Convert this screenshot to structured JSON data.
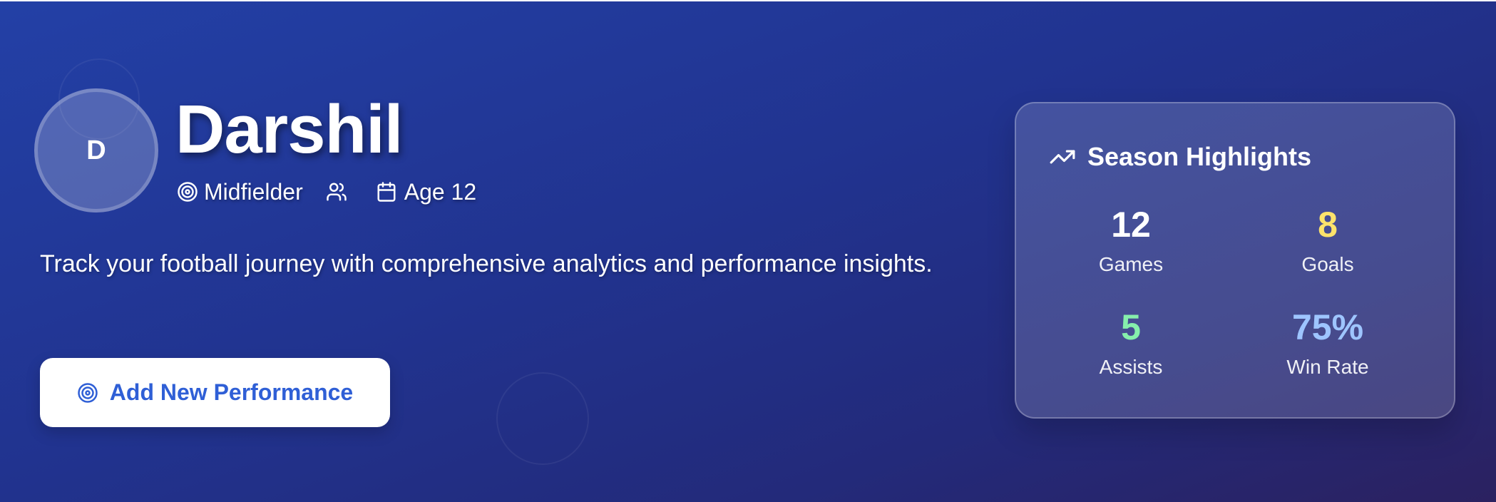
{
  "player": {
    "initial": "D",
    "name": "Darshil",
    "position": "Midfielder",
    "age": "Age 12"
  },
  "tagline": "Track your football journey with comprehensive analytics and performance insights.",
  "actions": {
    "add_performance_label": "Add New Performance"
  },
  "highlights": {
    "title": "Season Highlights",
    "stats": [
      {
        "value": "12",
        "label": "Games",
        "color": "#ffffff"
      },
      {
        "value": "8",
        "label": "Goals",
        "color": "#fde36b"
      },
      {
        "value": "5",
        "label": "Assists",
        "color": "#86efac"
      },
      {
        "value": "75%",
        "label": "Win Rate",
        "color": "#9ec5ff"
      }
    ]
  },
  "icons": {
    "position": "target-icon",
    "team": "users-icon",
    "age": "calendar-icon",
    "highlights": "trending-up-icon",
    "add_button": "target-icon"
  },
  "colors": {
    "accent": "#2f5fd6",
    "background_start": "#2340a6",
    "background_end": "#2b2160"
  }
}
